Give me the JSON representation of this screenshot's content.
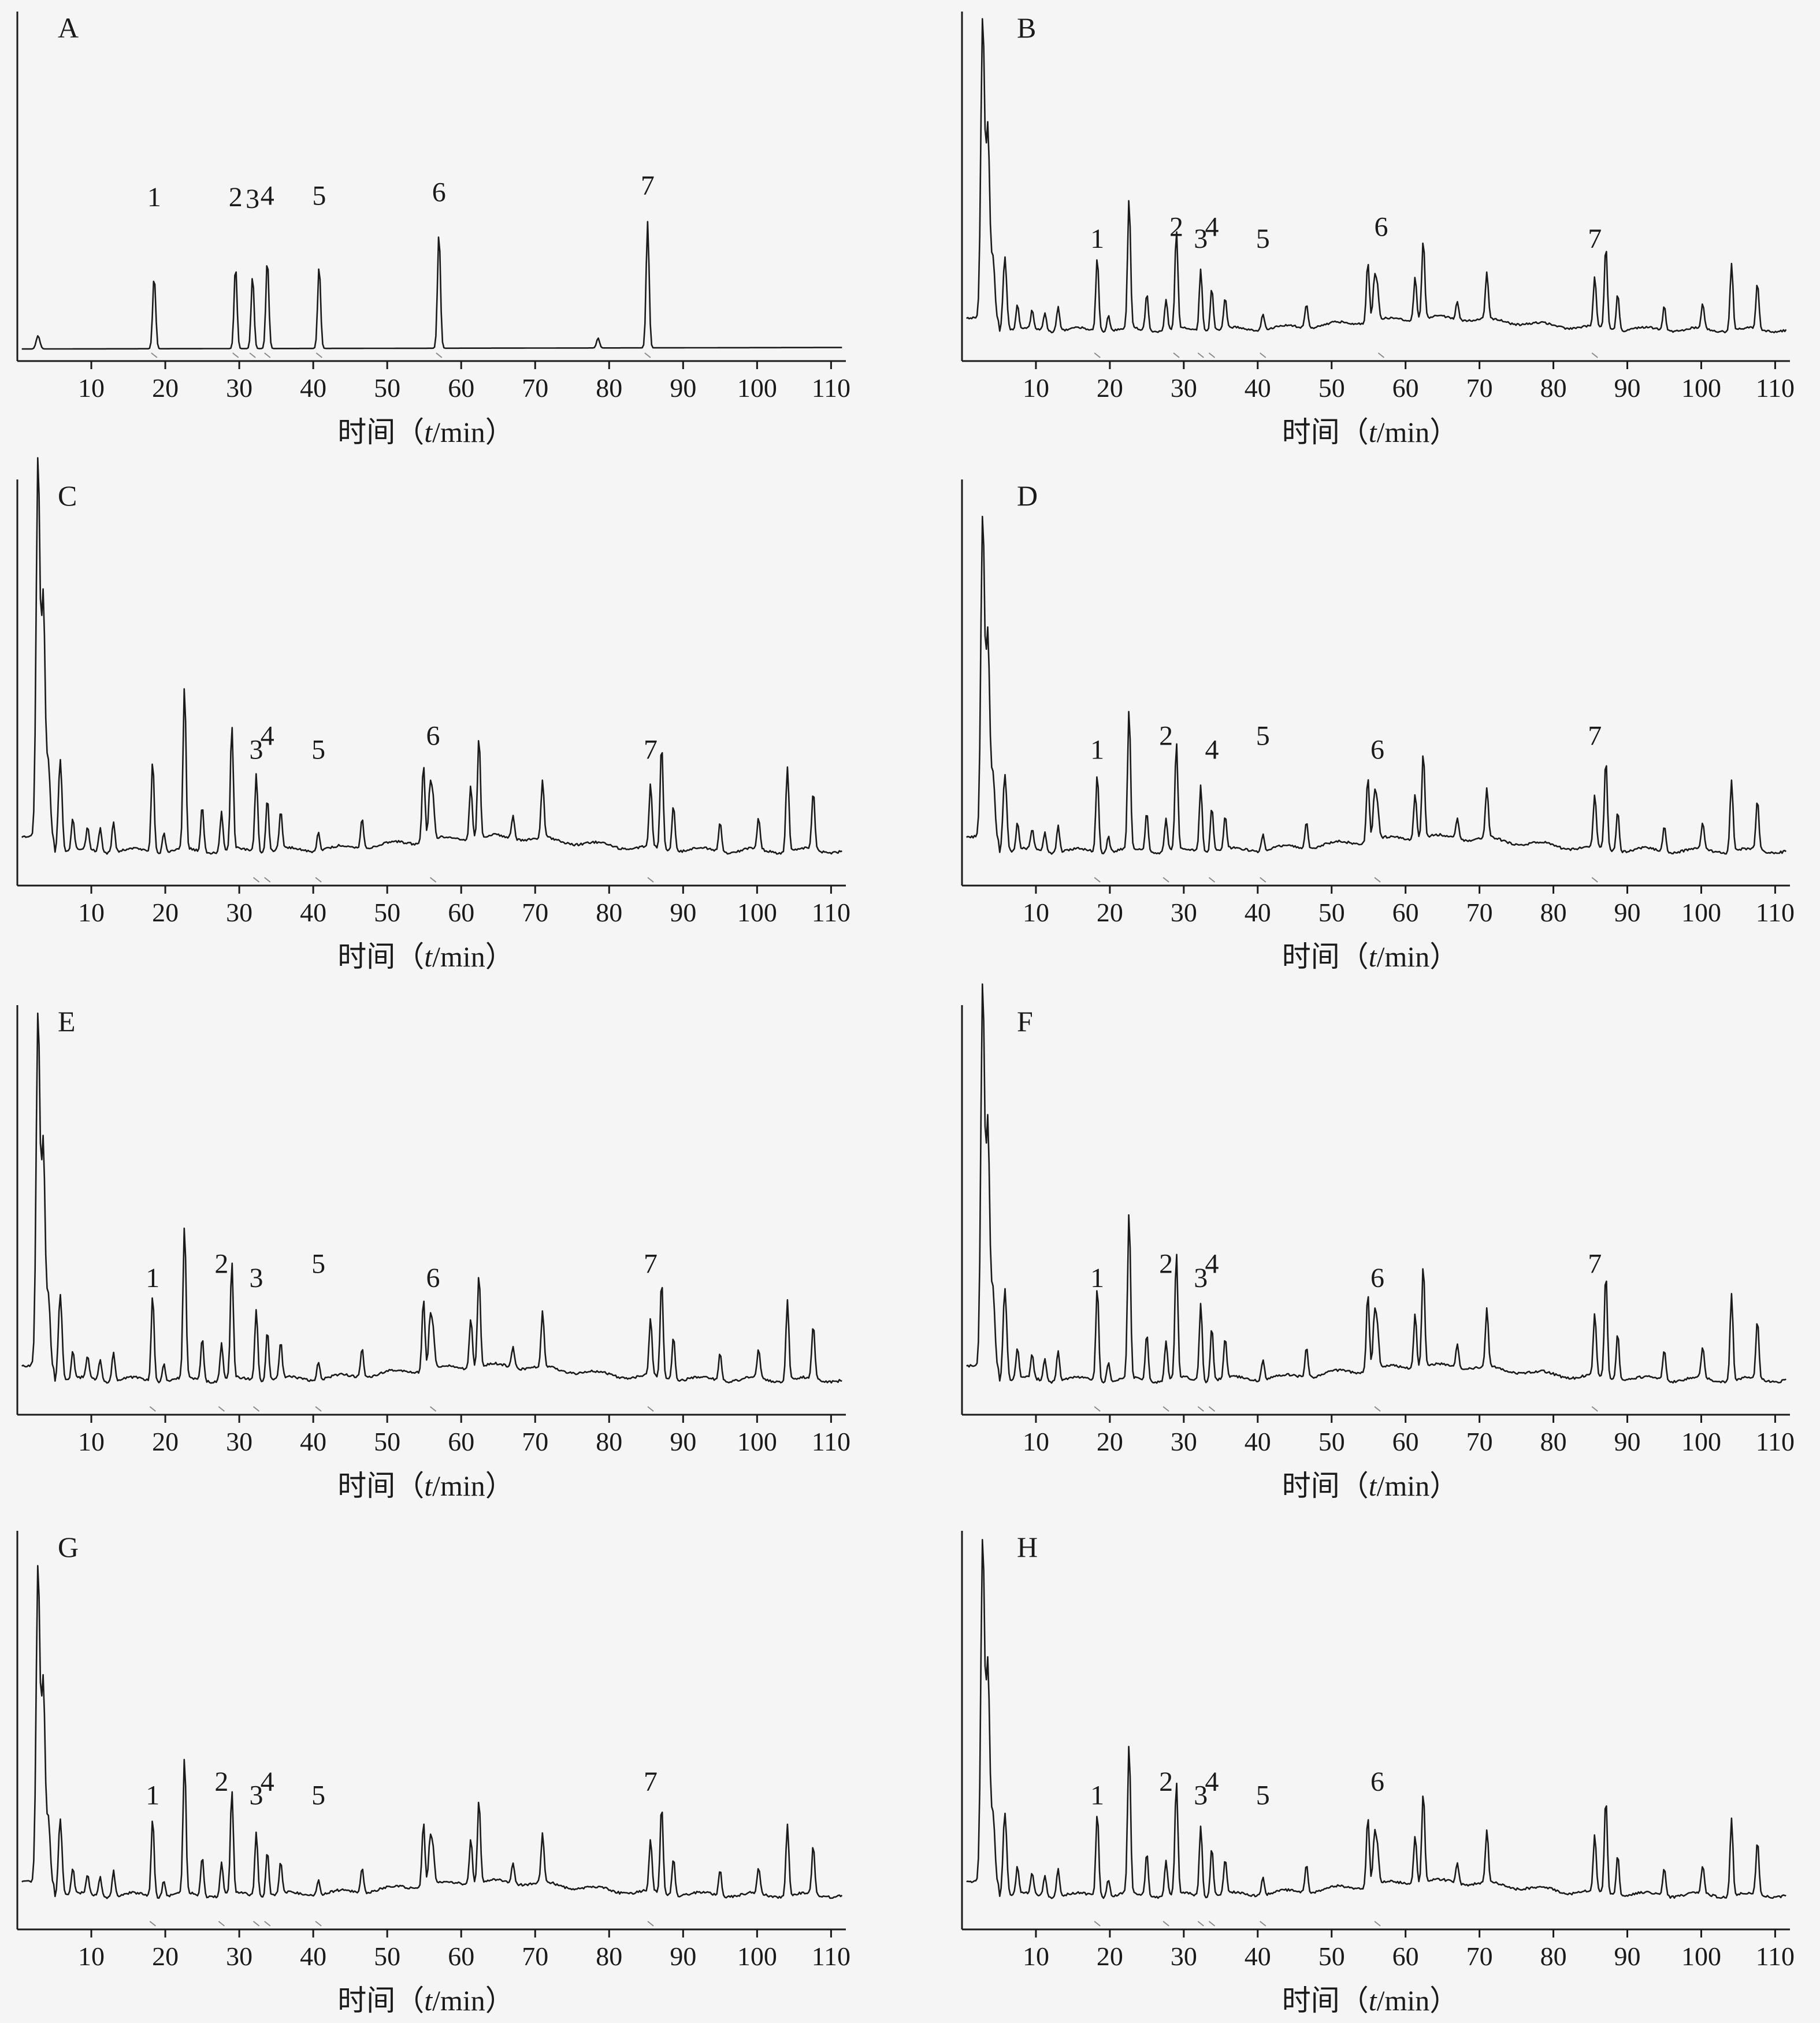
{
  "colors": {
    "background": "#f5f5f5",
    "ink": "#1a1a1a",
    "marker": "#8a8a8a"
  },
  "chart_data": [
    {
      "panel": "A",
      "type": "line",
      "xlabel_prefix": "时间（",
      "xlabel_var": "t",
      "xlabel_unit": "/min）",
      "xlim": [
        0,
        112
      ],
      "ticks": [
        10,
        20,
        30,
        40,
        50,
        60,
        70,
        80,
        90,
        100,
        110
      ],
      "peak_labels": [
        {
          "label": "1",
          "t": 18.5
        },
        {
          "label": "2",
          "t": 29.5
        },
        {
          "label": "3",
          "t": 31.8
        },
        {
          "label": "4",
          "t": 33.8
        },
        {
          "label": "5",
          "t": 40.8
        },
        {
          "label": "6",
          "t": 57.0
        },
        {
          "label": "7",
          "t": 85.2
        }
      ]
    },
    {
      "panel": "B",
      "type": "line",
      "xlabel_prefix": "时间（",
      "xlabel_var": "t",
      "xlabel_unit": "/min）",
      "xlim": [
        0,
        112
      ],
      "ticks": [
        10,
        20,
        30,
        40,
        50,
        60,
        70,
        80,
        90,
        100,
        110
      ],
      "peak_labels": [
        {
          "label": "1",
          "t": 18.3
        },
        {
          "label": "2",
          "t": 29.0
        },
        {
          "label": "3",
          "t": 32.3
        },
        {
          "label": "4",
          "t": 33.8
        },
        {
          "label": "5",
          "t": 40.7
        },
        {
          "label": "6",
          "t": 56.7
        },
        {
          "label": "7",
          "t": 85.6
        }
      ]
    },
    {
      "panel": "C",
      "type": "line",
      "xlabel_prefix": "时间（",
      "xlabel_var": "t",
      "xlabel_unit": "/min）",
      "xlim": [
        0,
        112
      ],
      "ticks": [
        10,
        20,
        30,
        40,
        50,
        60,
        70,
        80,
        90,
        100,
        110
      ],
      "peak_labels": [
        {
          "label": "3",
          "t": 32.3
        },
        {
          "label": "4",
          "t": 33.8
        },
        {
          "label": "5",
          "t": 40.7
        },
        {
          "label": "6",
          "t": 56.2
        },
        {
          "label": "7",
          "t": 85.6
        }
      ]
    },
    {
      "panel": "D",
      "type": "line",
      "xlabel_prefix": "时间（",
      "xlabel_var": "t",
      "xlabel_unit": "/min）",
      "xlim": [
        0,
        112
      ],
      "ticks": [
        10,
        20,
        30,
        40,
        50,
        60,
        70,
        80,
        90,
        100,
        110
      ],
      "peak_labels": [
        {
          "label": "1",
          "t": 18.3
        },
        {
          "label": "2",
          "t": 27.6
        },
        {
          "label": "4",
          "t": 33.8
        },
        {
          "label": "5",
          "t": 40.7
        },
        {
          "label": "6",
          "t": 56.2
        },
        {
          "label": "7",
          "t": 85.6
        }
      ]
    },
    {
      "panel": "E",
      "type": "line",
      "xlabel_prefix": "时间（",
      "xlabel_var": "t",
      "xlabel_unit": "/min）",
      "xlim": [
        0,
        112
      ],
      "ticks": [
        10,
        20,
        30,
        40,
        50,
        60,
        70,
        80,
        90,
        100,
        110
      ],
      "peak_labels": [
        {
          "label": "1",
          "t": 18.3
        },
        {
          "label": "2",
          "t": 27.6
        },
        {
          "label": "3",
          "t": 32.3
        },
        {
          "label": "5",
          "t": 40.7
        },
        {
          "label": "6",
          "t": 56.2
        },
        {
          "label": "7",
          "t": 85.6
        }
      ]
    },
    {
      "panel": "F",
      "type": "line",
      "xlabel_prefix": "时间（",
      "xlabel_var": "t",
      "xlabel_unit": "/min）",
      "xlim": [
        0,
        112
      ],
      "ticks": [
        10,
        20,
        30,
        40,
        50,
        60,
        70,
        80,
        90,
        100,
        110
      ],
      "peak_labels": [
        {
          "label": "1",
          "t": 18.3
        },
        {
          "label": "2",
          "t": 27.6
        },
        {
          "label": "3",
          "t": 32.3
        },
        {
          "label": "4",
          "t": 33.8
        },
        {
          "label": "6",
          "t": 56.2
        },
        {
          "label": "7",
          "t": 85.6
        }
      ]
    },
    {
      "panel": "G",
      "type": "line",
      "xlabel_prefix": "时间（",
      "xlabel_var": "t",
      "xlabel_unit": "/min）",
      "xlim": [
        0,
        112
      ],
      "ticks": [
        10,
        20,
        30,
        40,
        50,
        60,
        70,
        80,
        90,
        100,
        110
      ],
      "peak_labels": [
        {
          "label": "1",
          "t": 18.3
        },
        {
          "label": "2",
          "t": 27.6
        },
        {
          "label": "3",
          "t": 32.3
        },
        {
          "label": "4",
          "t": 33.8
        },
        {
          "label": "5",
          "t": 40.7
        },
        {
          "label": "7",
          "t": 85.6
        }
      ]
    },
    {
      "panel": "H",
      "type": "line",
      "xlabel_prefix": "时间（",
      "xlabel_var": "t",
      "xlabel_unit": "/min）",
      "xlim": [
        0,
        112
      ],
      "ticks": [
        10,
        20,
        30,
        40,
        50,
        60,
        70,
        80,
        90,
        100,
        110
      ],
      "peak_labels": [
        {
          "label": "1",
          "t": 18.3
        },
        {
          "label": "2",
          "t": 27.6
        },
        {
          "label": "3",
          "t": 32.3
        },
        {
          "label": "4",
          "t": 33.8
        },
        {
          "label": "5",
          "t": 40.7
        },
        {
          "label": "6",
          "t": 56.2
        }
      ]
    }
  ]
}
